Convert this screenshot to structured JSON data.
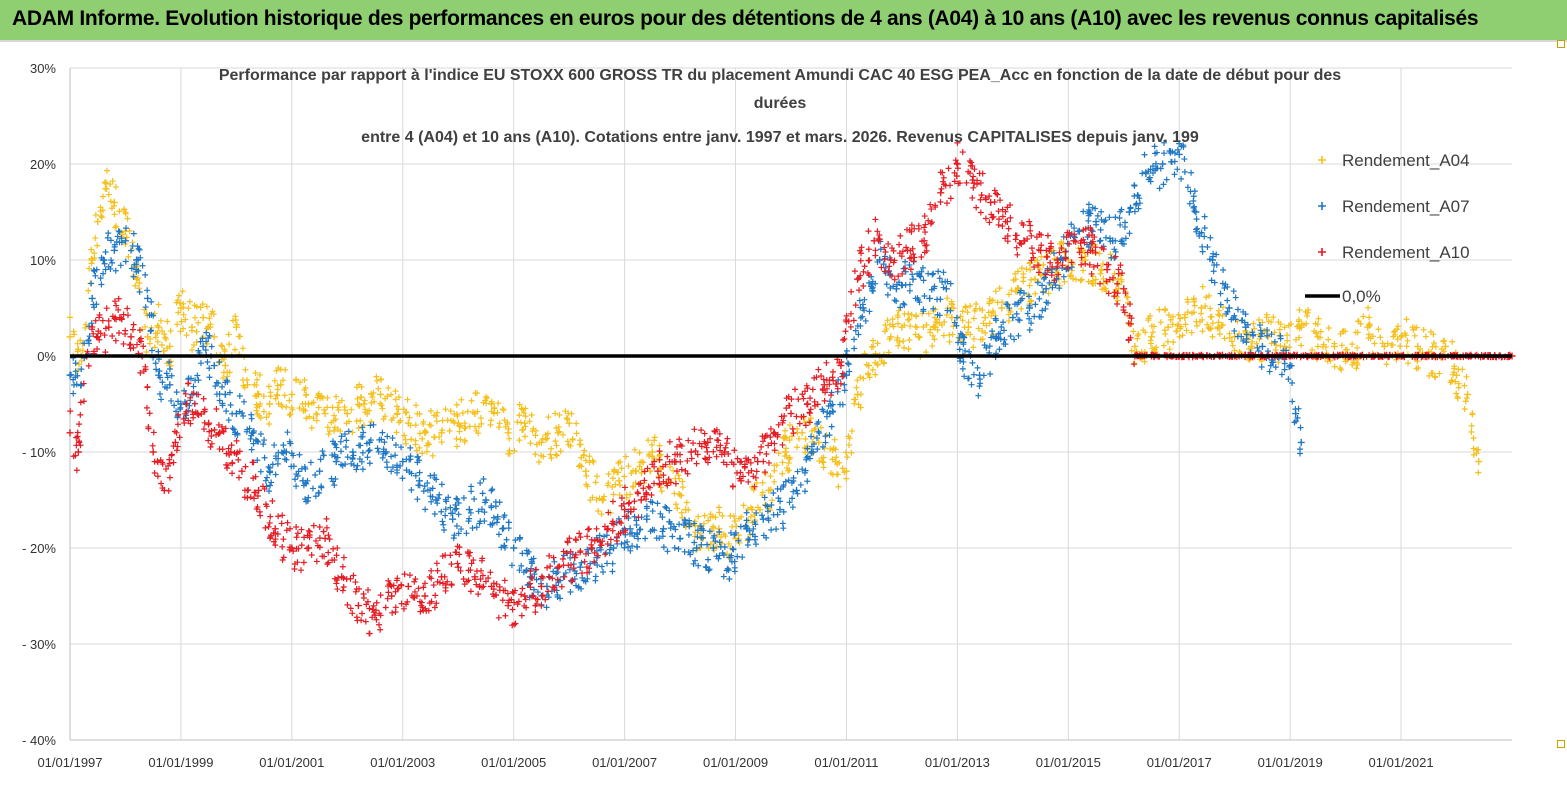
{
  "header": {
    "title": "ADAM Informe. Evolution historique des performances en euros pour des détentions de 4 ans (A04) à 10 ans (A10) avec les revenus connus capitalisés"
  },
  "chart_data": {
    "type": "scatter",
    "title_lines": [
      "Performance par rapport à l'indice EU STOXX 600 GROSS TR  du placement Amundi CAC 40 ESG PEA_Acc en fonction de la date de début pour des",
      "durées",
      "entre 4 (A04) et 10 ans (A10). Cotations entre janv. 1997 et mars. 2026. Revenus CAPITALISES depuis janv. 199"
    ],
    "ylim": [
      -40,
      30
    ],
    "yticks": [
      30,
      20,
      10,
      0,
      -10,
      -20,
      -30,
      -40
    ],
    "ytick_labels": [
      "30%",
      "20%",
      "10%",
      "0%",
      "- 10%",
      "- 20%",
      "- 30%",
      "- 40%"
    ],
    "xlim": [
      1997.0,
      2023.0
    ],
    "xticks": [
      1997,
      1999,
      2001,
      2003,
      2005,
      2007,
      2009,
      2011,
      2013,
      2015,
      2017,
      2019,
      2021
    ],
    "xtick_labels": [
      "01/01/1997",
      "01/01/1999",
      "01/01/2001",
      "01/01/2003",
      "01/01/2005",
      "01/01/2007",
      "01/01/2009",
      "01/01/2011",
      "01/01/2013",
      "01/01/2015",
      "01/01/2017",
      "01/01/2019",
      "01/01/2021"
    ],
    "grid": true,
    "legend_position": "right",
    "series": [
      {
        "name": "Rendement_A04",
        "color": "#f5c01e",
        "marker": "+",
        "x": [
          1997.0,
          1997.2,
          1997.4,
          1997.5,
          1997.65,
          1997.8,
          1998.0,
          1998.2,
          1998.4,
          1998.6,
          1998.8,
          1999.0,
          1999.2,
          1999.4,
          1999.6,
          1999.8,
          2000.0,
          2000.2,
          2000.4,
          2000.6,
          2000.8,
          2001.0,
          2001.3,
          2001.6,
          2002.0,
          2002.3,
          2002.6,
          2002.9,
          2003.1,
          2003.4,
          2003.7,
          2004.0,
          2004.3,
          2004.6,
          2004.9,
          2005.2,
          2005.5,
          2005.8,
          2006.0,
          2006.3,
          2006.6,
          2006.9,
          2007.2,
          2007.5,
          2007.8,
          2008.1,
          2008.4,
          2008.7,
          2009.0,
          2009.3,
          2009.6,
          2009.9,
          2010.2,
          2010.5,
          2010.8,
          2011.0,
          2011.2,
          2011.4,
          2011.6,
          2011.8,
          2012.0,
          2012.3,
          2012.6,
          2012.9,
          2013.2,
          2013.5,
          2013.8,
          2014.1,
          2014.4,
          2014.7,
          2015.0,
          2015.3,
          2015.6,
          2015.9,
          2016.2,
          2016.5,
          2016.8,
          2017.1,
          2017.4,
          2017.7,
          2018.0,
          2018.3,
          2018.6,
          2018.9,
          2019.2,
          2019.5,
          2019.8,
          2020.1,
          2020.4,
          2020.7,
          2021.0,
          2021.3,
          2021.6,
          2021.8,
          2022.0,
          2022.2,
          2022.4
        ],
        "y": [
          2,
          0,
          10,
          14,
          18,
          16,
          13,
          8,
          2,
          3,
          1,
          5,
          3,
          4,
          2,
          -1,
          3,
          -3,
          -4,
          -5,
          -3,
          -4,
          -5,
          -6,
          -6,
          -5,
          -4,
          -6,
          -7,
          -8,
          -8,
          -7,
          -6,
          -5,
          -8,
          -7,
          -9,
          -8,
          -7,
          -12,
          -15,
          -13,
          -12,
          -10,
          -13,
          -16,
          -19,
          -18,
          -19,
          -16,
          -14,
          -10,
          -8,
          -9,
          -11,
          -12,
          -4,
          -1,
          0,
          2,
          3,
          2,
          3,
          4,
          3,
          4,
          5,
          7,
          8,
          9,
          10,
          10,
          9,
          8,
          1,
          2,
          3,
          4,
          5,
          3,
          2,
          1,
          2,
          1,
          3,
          2,
          1,
          0,
          3,
          1,
          2,
          1,
          0,
          1,
          -2,
          -4,
          -11
        ]
      },
      {
        "name": "Rendement_A07",
        "color": "#1f77c4",
        "marker": "+",
        "x": [
          1997.0,
          1997.2,
          1997.4,
          1997.6,
          1997.8,
          1998.0,
          1998.2,
          1998.4,
          1998.6,
          1998.8,
          1999.0,
          1999.2,
          1999.4,
          1999.6,
          1999.8,
          2000.0,
          2000.3,
          2000.6,
          2000.9,
          2001.2,
          2001.5,
          2001.8,
          2002.1,
          2002.4,
          2002.7,
          2003.0,
          2003.3,
          2003.6,
          2003.9,
          2004.2,
          2004.5,
          2004.8,
          2005.0,
          2005.3,
          2005.6,
          2005.9,
          2006.2,
          2006.5,
          2006.8,
          2007.1,
          2007.4,
          2007.7,
          2008.0,
          2008.3,
          2008.6,
          2008.9,
          2009.2,
          2009.5,
          2009.8,
          2010.1,
          2010.4,
          2010.7,
          2011.0,
          2011.3,
          2011.6,
          2011.9,
          2012.2,
          2012.5,
          2012.8,
          2013.1,
          2013.4,
          2013.7,
          2014.0,
          2014.3,
          2014.6,
          2014.9,
          2015.2,
          2015.5,
          2015.8,
          2016.1,
          2016.4,
          2016.7,
          2017.0,
          2017.3,
          2017.6,
          2017.9,
          2018.2,
          2018.5,
          2018.8,
          2019.0,
          2019.1,
          2019.2
        ],
        "y": [
          -2,
          -3,
          6,
          10,
          11,
          12,
          10,
          6,
          -2,
          -3,
          -5,
          -4,
          1,
          -1,
          -4,
          -6,
          -8,
          -12,
          -10,
          -13,
          -12,
          -11,
          -10,
          -9,
          -10,
          -11,
          -13,
          -15,
          -17,
          -16,
          -15,
          -18,
          -20,
          -23,
          -24,
          -23,
          -22,
          -21,
          -20,
          -18,
          -17,
          -18,
          -19,
          -20,
          -20,
          -21,
          -18,
          -17,
          -16,
          -14,
          -10,
          -6,
          -2,
          5,
          10,
          7,
          8,
          6,
          7,
          0,
          -2,
          2,
          4,
          5,
          7,
          10,
          13,
          14,
          12,
          15,
          19,
          20,
          21,
          15,
          10,
          5,
          3,
          1,
          0,
          -1,
          -6,
          -9
        ]
      },
      {
        "name": "Rendement_A10",
        "color": "#e51c23",
        "marker": "+",
        "x": [
          1997.0,
          1997.15,
          1997.3,
          1997.5,
          1997.7,
          1997.9,
          1998.1,
          1998.3,
          1998.5,
          1998.7,
          1998.9,
          1999.1,
          1999.3,
          1999.5,
          1999.7,
          1999.9,
          2000.1,
          2000.4,
          2000.7,
          2001.0,
          2001.3,
          2001.6,
          2001.9,
          2002.2,
          2002.5,
          2002.8,
          2003.1,
          2003.4,
          2003.7,
          2004.0,
          2004.3,
          2004.6,
          2004.9,
          2005.2,
          2005.5,
          2005.8,
          2006.1,
          2006.4,
          2006.7,
          2007.0,
          2007.3,
          2007.6,
          2007.9,
          2008.2,
          2008.5,
          2008.8,
          2009.1,
          2009.4,
          2009.7,
          2010.0,
          2010.3,
          2010.6,
          2010.9,
          2011.2,
          2011.5,
          2011.8,
          2012.1,
          2012.4,
          2012.7,
          2013.0,
          2013.3,
          2013.6,
          2013.9,
          2014.2,
          2014.5,
          2014.8,
          2015.1,
          2015.4,
          2015.7,
          2016.0,
          2016.2,
          2016.5,
          2017.0,
          2017.5,
          2018.0,
          2018.5,
          2019.0,
          2019.5,
          2020.0,
          2020.5,
          2021.0,
          2021.5,
          2022.0,
          2022.5,
          2023.0
        ],
        "y": [
          -8,
          -10,
          0,
          2,
          3,
          4,
          2,
          0,
          -10,
          -14,
          -9,
          -5,
          -6,
          -7,
          -8,
          -10,
          -12,
          -14,
          -18,
          -20,
          -20,
          -19,
          -23,
          -26,
          -27,
          -25,
          -24,
          -25,
          -23,
          -22,
          -23,
          -24,
          -26,
          -25,
          -24,
          -22,
          -21,
          -20,
          -18,
          -16,
          -15,
          -12,
          -11,
          -10,
          -9,
          -10,
          -13,
          -11,
          -8,
          -6,
          -5,
          -3,
          -1,
          8,
          12,
          10,
          11,
          12,
          17,
          20,
          18,
          16,
          14,
          12,
          11,
          10,
          12,
          11,
          9,
          7,
          0,
          0,
          0,
          0,
          0,
          0,
          0,
          0,
          0,
          0,
          0,
          0,
          0,
          0,
          0
        ]
      },
      {
        "name": "0,0%",
        "color": "#000000",
        "marker": "line",
        "x": [
          1997.0,
          2023.0
        ],
        "y": [
          0,
          0
        ]
      }
    ]
  }
}
